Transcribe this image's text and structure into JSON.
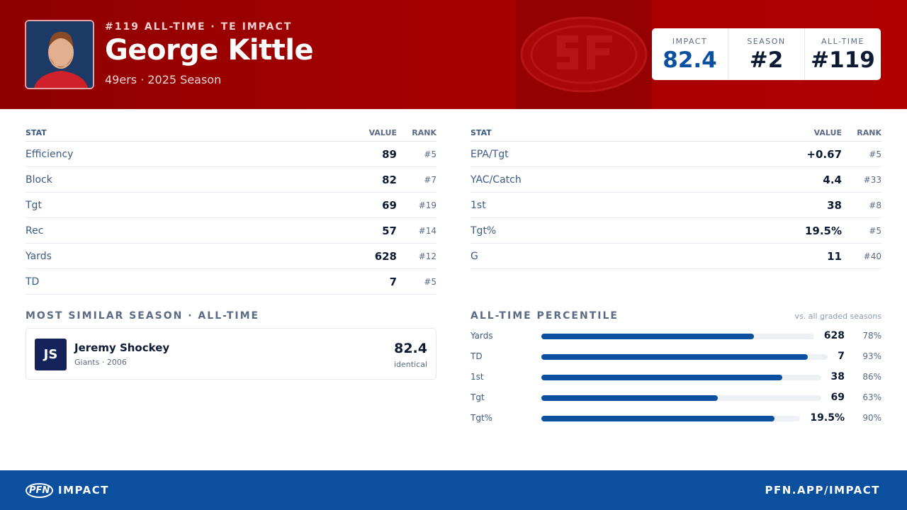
{
  "header": {
    "kicker": "#119 ALL-TIME · TE IMPACT",
    "player": "George Kittle",
    "subtitle": "49ers · 2025 Season",
    "summary": [
      {
        "label": "IMPACT",
        "value": "82.4"
      },
      {
        "label": "SEASON",
        "value": "#2"
      },
      {
        "label": "ALL-TIME",
        "value": "#119"
      }
    ]
  },
  "stat_tables": [
    {
      "columns": [
        "STAT",
        "VALUE",
        "RANK"
      ],
      "rows": [
        [
          "Efficiency",
          "89",
          "#5"
        ],
        [
          "Block",
          "82",
          "#7"
        ],
        [
          "Tgt",
          "69",
          "#19"
        ],
        [
          "Rec",
          "57",
          "#14"
        ],
        [
          "Yards",
          "628",
          "#12"
        ],
        [
          "TD",
          "7",
          "#5"
        ]
      ]
    },
    {
      "columns": [
        "STAT",
        "VALUE",
        "RANK"
      ],
      "rows": [
        [
          "EPA/Tgt",
          "+0.67",
          "#5"
        ],
        [
          "YAC/Catch",
          "4.4",
          "#33"
        ],
        [
          "1st",
          "38",
          "#8"
        ],
        [
          "Tgt%",
          "19.5%",
          "#5"
        ],
        [
          "G",
          "11",
          "#40"
        ]
      ]
    }
  ],
  "similar": {
    "heading": "MOST SIMILAR SEASON · ALL-TIME",
    "initials": "JS",
    "name": "Jeremy Shockey",
    "detail": "Giants · 2006",
    "score": "82.4",
    "note": "identical"
  },
  "percentile": {
    "heading": "ALL-TIME PERCENTILE",
    "note": "vs. all graded seasons",
    "rows": [
      {
        "stat": "Yards",
        "value": "628",
        "percentile": 78,
        "percentile_label": "78%"
      },
      {
        "stat": "TD",
        "value": "7",
        "percentile": 93,
        "percentile_label": "93%"
      },
      {
        "stat": "1st",
        "value": "38",
        "percentile": 86,
        "percentile_label": "86%"
      },
      {
        "stat": "Tgt",
        "value": "69",
        "percentile": 63,
        "percentile_label": "63%"
      },
      {
        "stat": "Tgt%",
        "value": "19.5%",
        "percentile": 90,
        "percentile_label": "90%"
      }
    ]
  },
  "footer": {
    "logo": "PFN",
    "brand": "IMPACT",
    "url": "PFN.APP/IMPACT"
  }
}
